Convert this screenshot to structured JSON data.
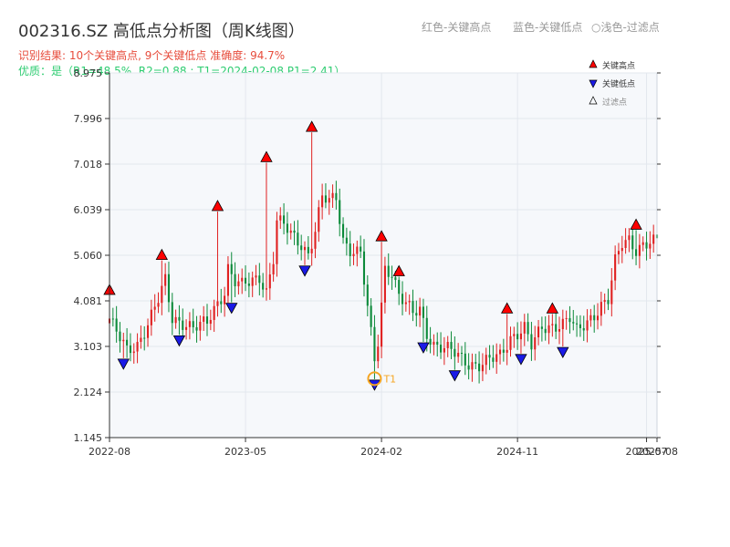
{
  "header": {
    "title": "002316.SZ 高低点分析图（周K线图）",
    "result_line": "识别结果: 10个关键高点, 9个关键低点   准确度: 94.7%",
    "quality_line": "优质：是（R1=48.5%, R2=0.88 ; T1=2024-02-08 P1=2.41）"
  },
  "top_legend": {
    "red": "红色-关键高点",
    "blue": "蓝色-关键低点",
    "light": "○浅色-过滤点"
  },
  "colors": {
    "up": "#e02020",
    "down": "#0c8a3a",
    "high_marker": "#ff0000",
    "low_marker": "#1a1ae6",
    "t1_marker": "#f5a623",
    "plot_bg": "#f6f8fb"
  },
  "chart_data": {
    "type": "candlestick",
    "ylim": [
      1.145,
      8.975
    ],
    "y_ticks": [
      "8.975",
      "7.996",
      "7.018",
      "6.039",
      "5.060",
      "4.081",
      "3.103",
      "2.124",
      "1.145"
    ],
    "x_ticks": [
      {
        "label": "2022-08",
        "idx": 0
      },
      {
        "label": "2023-05",
        "idx": 39
      },
      {
        "label": "2024-02",
        "idx": 78
      },
      {
        "label": "2024-11",
        "idx": 117
      },
      {
        "label": "2025-07",
        "idx": 154
      },
      {
        "label": "2025-08",
        "idx": 157
      }
    ],
    "n_weeks": 158,
    "anchors": [
      [
        0,
        3.7
      ],
      [
        2,
        3.4
      ],
      [
        5,
        3.0
      ],
      [
        8,
        3.15
      ],
      [
        11,
        3.6
      ],
      [
        14,
        4.1
      ],
      [
        16,
        4.5
      ],
      [
        18,
        3.7
      ],
      [
        22,
        3.6
      ],
      [
        24,
        3.5
      ],
      [
        28,
        3.6
      ],
      [
        30,
        3.9
      ],
      [
        33,
        4.3
      ],
      [
        34,
        4.8
      ],
      [
        36,
        4.5
      ],
      [
        38,
        4.4
      ],
      [
        41,
        4.5
      ],
      [
        43,
        4.6
      ],
      [
        45,
        4.3
      ],
      [
        47,
        5.0
      ],
      [
        48,
        5.8
      ],
      [
        50,
        5.7
      ],
      [
        52,
        5.5
      ],
      [
        55,
        5.3
      ],
      [
        57,
        5.1
      ],
      [
        59,
        5.6
      ],
      [
        61,
        6.3
      ],
      [
        63,
        6.2
      ],
      [
        65,
        6.3
      ],
      [
        67,
        5.4
      ],
      [
        69,
        5.2
      ],
      [
        72,
        5.1
      ],
      [
        74,
        3.9
      ],
      [
        76,
        2.8
      ],
      [
        77,
        3.2
      ],
      [
        79,
        4.8
      ],
      [
        81,
        4.7
      ],
      [
        83,
        4.2
      ],
      [
        85,
        4.0
      ],
      [
        87,
        3.8
      ],
      [
        89,
        3.9
      ],
      [
        91,
        3.4
      ],
      [
        93,
        3.15
      ],
      [
        96,
        3.05
      ],
      [
        98,
        3.0
      ],
      [
        100,
        2.9
      ],
      [
        103,
        2.75
      ],
      [
        106,
        2.7
      ],
      [
        109,
        2.8
      ],
      [
        112,
        2.9
      ],
      [
        115,
        3.3
      ],
      [
        117,
        3.4
      ],
      [
        119,
        3.5
      ],
      [
        121,
        3.1
      ],
      [
        124,
        3.5
      ],
      [
        127,
        3.55
      ],
      [
        130,
        3.6
      ],
      [
        132,
        3.7
      ],
      [
        134,
        3.4
      ],
      [
        136,
        3.55
      ],
      [
        139,
        3.8
      ],
      [
        141,
        4.0
      ],
      [
        143,
        4.1
      ],
      [
        145,
        4.9
      ],
      [
        147,
        5.3
      ],
      [
        149,
        5.4
      ],
      [
        151,
        5.2
      ],
      [
        153,
        5.3
      ],
      [
        157,
        5.35
      ]
    ],
    "spikes": [
      {
        "idx": 0,
        "type": "high",
        "value": 4.2
      },
      {
        "idx": 4,
        "type": "low",
        "value": 2.85
      },
      {
        "idx": 15,
        "type": "high",
        "value": 4.95
      },
      {
        "idx": 20,
        "type": "low",
        "value": 3.35
      },
      {
        "idx": 31,
        "type": "high",
        "value": 6.0
      },
      {
        "idx": 35,
        "type": "low",
        "value": 4.05
      },
      {
        "idx": 45,
        "type": "high",
        "value": 7.05
      },
      {
        "idx": 56,
        "type": "low",
        "value": 4.85
      },
      {
        "idx": 58,
        "type": "high",
        "value": 7.7
      },
      {
        "idx": 76,
        "type": "low",
        "value": 2.4
      },
      {
        "idx": 78,
        "type": "high",
        "value": 5.35
      },
      {
        "idx": 83,
        "type": "high",
        "value": 4.6
      },
      {
        "idx": 90,
        "type": "low",
        "value": 3.2
      },
      {
        "idx": 99,
        "type": "low",
        "value": 2.6
      },
      {
        "idx": 114,
        "type": "high",
        "value": 3.8
      },
      {
        "idx": 118,
        "type": "low",
        "value": 2.95
      },
      {
        "idx": 127,
        "type": "high",
        "value": 3.8
      },
      {
        "idx": 130,
        "type": "low",
        "value": 3.1
      },
      {
        "idx": 151,
        "type": "high",
        "value": 5.6
      }
    ],
    "t1": {
      "label": "T1",
      "idx": 76,
      "value": 2.41
    },
    "legend": [
      {
        "label": "关键高点",
        "marker": "triangle-up-red"
      },
      {
        "label": "关键低点",
        "marker": "triangle-down-blue"
      },
      {
        "label": "过滤点",
        "marker": "triangle-up-hollow"
      }
    ]
  }
}
